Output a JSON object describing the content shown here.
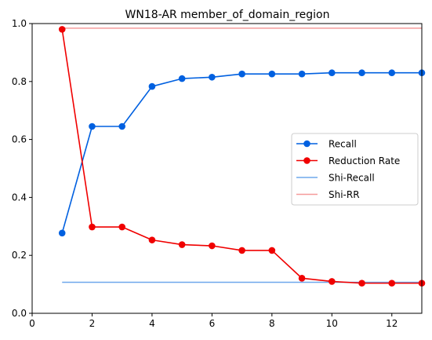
{
  "chart_data": {
    "type": "line",
    "title": "WN18-AR member_of_domain_region",
    "xlabel": "",
    "ylabel": "",
    "xlim": [
      0,
      13
    ],
    "ylim": [
      0,
      1
    ],
    "x_ticks": [
      0,
      2,
      4,
      6,
      8,
      10,
      12
    ],
    "y_ticks": [
      0.0,
      0.2,
      0.4,
      0.6,
      0.8,
      1.0
    ],
    "grid": false,
    "legend_position": "center-right",
    "series": [
      {
        "name": "Recall",
        "color": "#0060e0",
        "marker": "circle",
        "x": [
          1,
          2,
          3,
          4,
          5,
          6,
          7,
          8,
          9,
          10,
          11,
          12,
          13
        ],
        "y": [
          0.277,
          0.645,
          0.645,
          0.783,
          0.81,
          0.815,
          0.826,
          0.826,
          0.826,
          0.83,
          0.83,
          0.83,
          0.83
        ]
      },
      {
        "name": "Reduction Rate",
        "color": "#f00000",
        "marker": "circle",
        "x": [
          1,
          2,
          3,
          4,
          5,
          6,
          7,
          8,
          9,
          10,
          11,
          12,
          13
        ],
        "y": [
          0.98,
          0.298,
          0.298,
          0.253,
          0.237,
          0.233,
          0.217,
          0.217,
          0.121,
          0.11,
          0.104,
          0.104,
          0.104
        ]
      },
      {
        "name": "Shi-Recall",
        "color": "#6fa8ec",
        "marker": "none",
        "x": [
          1,
          13
        ],
        "y": [
          0.107,
          0.107
        ]
      },
      {
        "name": "Shi-RR",
        "color": "#f59b9b",
        "marker": "none",
        "x": [
          1,
          13
        ],
        "y": [
          0.984,
          0.984
        ]
      }
    ]
  }
}
